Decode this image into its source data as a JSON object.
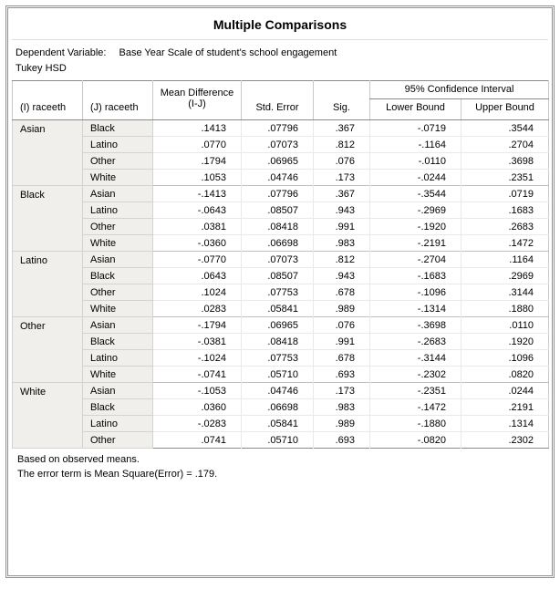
{
  "header": {
    "dependent_variable_label": "Dependent Variable:",
    "dependent_variable_value": "Base Year Scale of student's school engagement",
    "method": "Tukey HSD",
    "i_col": "(I) raceeth",
    "j_col": "(J) raceeth",
    "mean_diff_col": "Mean Difference (I-J)",
    "std_error_col": "Std. Error",
    "sig_col": "Sig.",
    "ci_col": "95% Confidence Interval",
    "lower_col": "Lower Bound",
    "upper_col": "Upper Bound"
  },
  "colors": {
    "label_cell_bg": "#f0efeb",
    "label_grid": "#d5d3cd",
    "data_grid": "#e9e9e6",
    "major_line": "#8a8a8a",
    "frame_border": "#8f8f8f"
  },
  "chart_data": {
    "type": "table",
    "title": "Multiple Comparisons",
    "columns": [
      "(I) raceeth",
      "(J) raceeth",
      "Mean Difference (I-J)",
      "Std. Error",
      "Sig.",
      "95% CI Lower Bound",
      "95% CI Upper Bound"
    ],
    "groups": [
      {
        "i": "Asian",
        "rows": [
          {
            "j": "Black",
            "values": [
              ".1413",
              ".07796",
              ".367",
              "-.0719",
              ".3544"
            ]
          },
          {
            "j": "Latino",
            "values": [
              ".0770",
              ".07073",
              ".812",
              "-.1164",
              ".2704"
            ]
          },
          {
            "j": "Other",
            "values": [
              ".1794",
              ".06965",
              ".076",
              "-.0110",
              ".3698"
            ]
          },
          {
            "j": "White",
            "values": [
              ".1053",
              ".04746",
              ".173",
              "-.0244",
              ".2351"
            ]
          }
        ]
      },
      {
        "i": "Black",
        "rows": [
          {
            "j": "Asian",
            "values": [
              "-.1413",
              ".07796",
              ".367",
              "-.3544",
              ".0719"
            ]
          },
          {
            "j": "Latino",
            "values": [
              "-.0643",
              ".08507",
              ".943",
              "-.2969",
              ".1683"
            ]
          },
          {
            "j": "Other",
            "values": [
              ".0381",
              ".08418",
              ".991",
              "-.1920",
              ".2683"
            ]
          },
          {
            "j": "White",
            "values": [
              "-.0360",
              ".06698",
              ".983",
              "-.2191",
              ".1472"
            ]
          }
        ]
      },
      {
        "i": "Latino",
        "rows": [
          {
            "j": "Asian",
            "values": [
              "-.0770",
              ".07073",
              ".812",
              "-.2704",
              ".1164"
            ]
          },
          {
            "j": "Black",
            "values": [
              ".0643",
              ".08507",
              ".943",
              "-.1683",
              ".2969"
            ]
          },
          {
            "j": "Other",
            "values": [
              ".1024",
              ".07753",
              ".678",
              "-.1096",
              ".3144"
            ]
          },
          {
            "j": "White",
            "values": [
              ".0283",
              ".05841",
              ".989",
              "-.1314",
              ".1880"
            ]
          }
        ]
      },
      {
        "i": "Other",
        "rows": [
          {
            "j": "Asian",
            "values": [
              "-.1794",
              ".06965",
              ".076",
              "-.3698",
              ".0110"
            ]
          },
          {
            "j": "Black",
            "values": [
              "-.0381",
              ".08418",
              ".991",
              "-.2683",
              ".1920"
            ]
          },
          {
            "j": "Latino",
            "values": [
              "-.1024",
              ".07753",
              ".678",
              "-.3144",
              ".1096"
            ]
          },
          {
            "j": "White",
            "values": [
              "-.0741",
              ".05710",
              ".693",
              "-.2302",
              ".0820"
            ]
          }
        ]
      },
      {
        "i": "White",
        "rows": [
          {
            "j": "Asian",
            "values": [
              "-.1053",
              ".04746",
              ".173",
              "-.2351",
              ".0244"
            ]
          },
          {
            "j": "Black",
            "values": [
              ".0360",
              ".06698",
              ".983",
              "-.1472",
              ".2191"
            ]
          },
          {
            "j": "Latino",
            "values": [
              "-.0283",
              ".05841",
              ".989",
              "-.1880",
              ".1314"
            ]
          },
          {
            "j": "Other",
            "values": [
              ".0741",
              ".05710",
              ".693",
              "-.0820",
              ".2302"
            ]
          }
        ]
      }
    ]
  },
  "footnotes": [
    "Based on observed means.",
    "The error term is Mean Square(Error) = .179."
  ]
}
